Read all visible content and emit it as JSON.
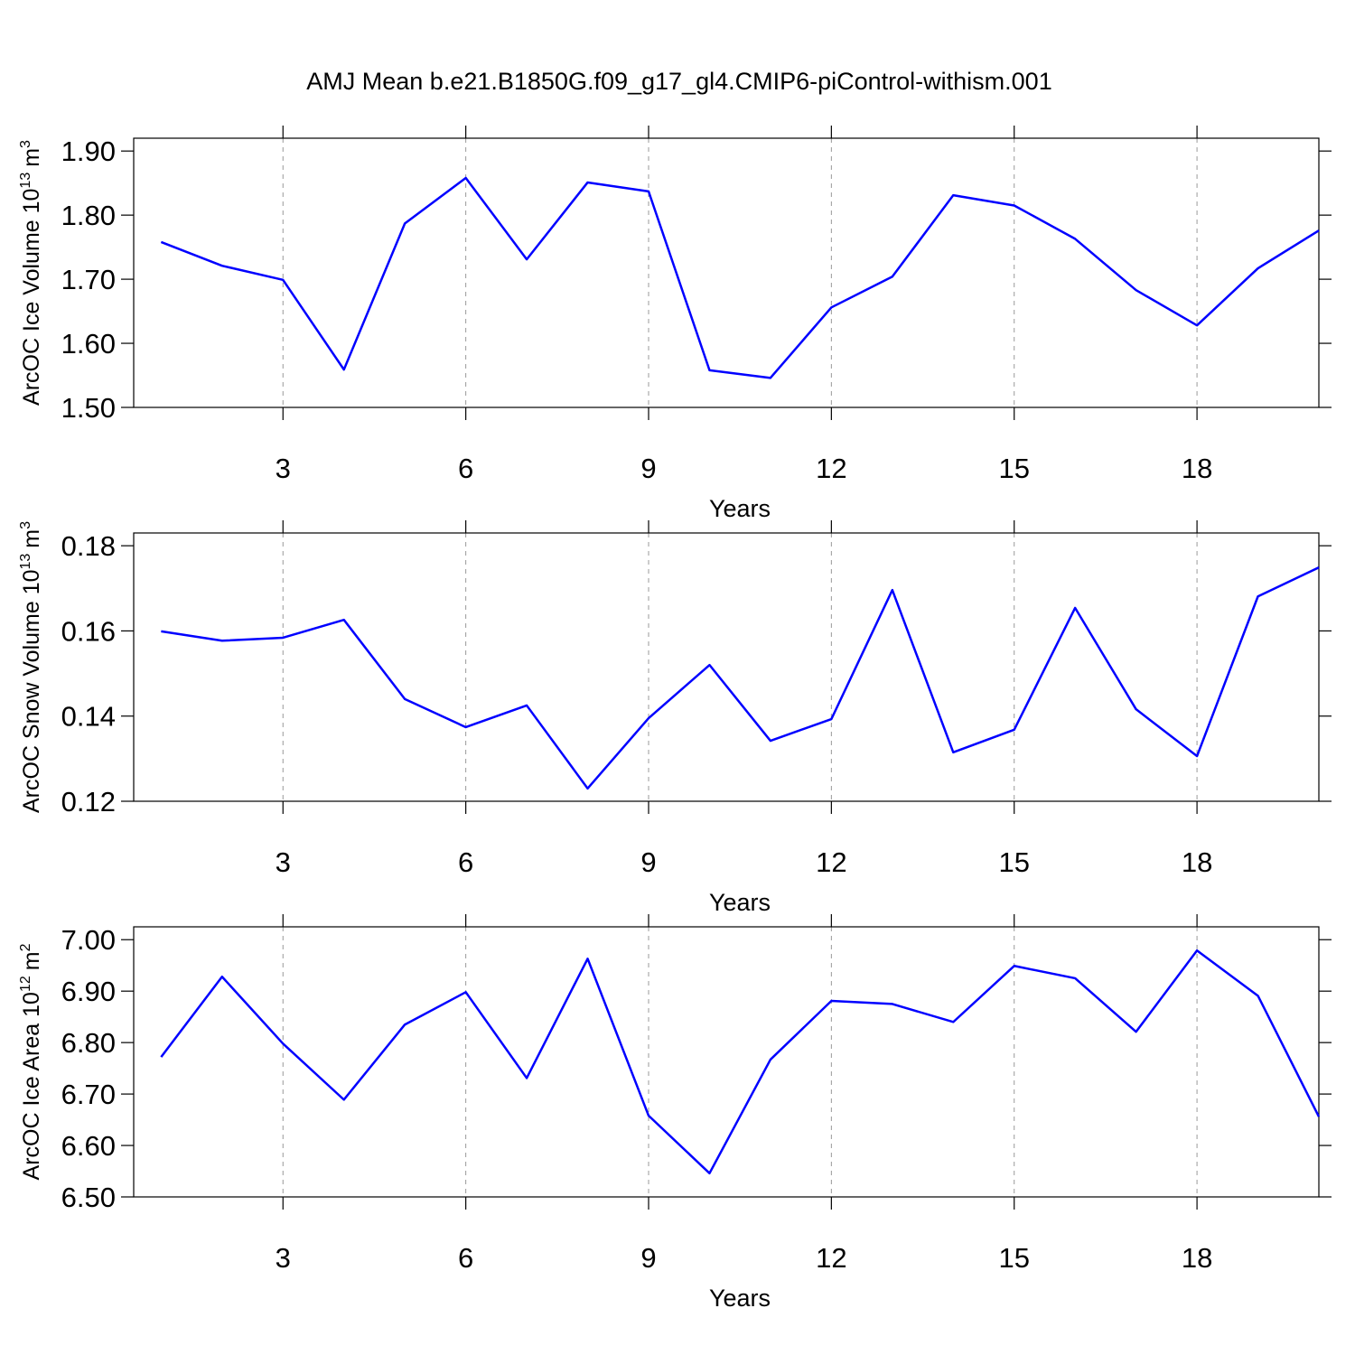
{
  "title": "AMJ Mean b.e21.B1850G.f09_g17_gl4.CMIP6-piControl-withism.001",
  "chart_data": [
    {
      "type": "line",
      "xlabel": "Years",
      "ylabel": {
        "text": "ArcOC Ice Volume 10",
        "exponent": "13",
        "unit": "m",
        "unit_exponent": "3"
      },
      "x": [
        1,
        2,
        3,
        4,
        5,
        6,
        7,
        8,
        9,
        10,
        11,
        12,
        13,
        14,
        15,
        16,
        17,
        18,
        19,
        20
      ],
      "values": [
        1.758,
        1.721,
        1.699,
        1.559,
        1.787,
        1.858,
        1.731,
        1.851,
        1.837,
        1.558,
        1.546,
        1.656,
        1.704,
        1.831,
        1.815,
        1.763,
        1.683,
        1.628,
        1.717,
        1.776
      ],
      "color": "#0000ff",
      "xlim": [
        0.55,
        20
      ],
      "xticks": [
        3,
        6,
        9,
        12,
        15,
        18
      ],
      "grid": true,
      "ylim": [
        1.5,
        1.92
      ],
      "yticks": [
        {
          "value": 1.5,
          "label": "1.50"
        },
        {
          "value": 1.6,
          "label": "1.60"
        },
        {
          "value": 1.7,
          "label": "1.70"
        },
        {
          "value": 1.8,
          "label": "1.80"
        },
        {
          "value": 1.9,
          "label": "1.90"
        }
      ]
    },
    {
      "type": "line",
      "xlabel": "Years",
      "ylabel": {
        "text": "ArcOC Snow Volume 10",
        "exponent": "13",
        "unit": "m",
        "unit_exponent": "3"
      },
      "x": [
        1,
        2,
        3,
        4,
        5,
        6,
        7,
        8,
        9,
        10,
        11,
        12,
        13,
        14,
        15,
        16,
        17,
        18,
        19,
        20
      ],
      "values": [
        0.1599,
        0.1577,
        0.1584,
        0.1626,
        0.144,
        0.1374,
        0.1425,
        0.123,
        0.1395,
        0.152,
        0.1342,
        0.1393,
        0.1696,
        0.1315,
        0.1368,
        0.1654,
        0.1416,
        0.1306,
        0.1681,
        0.1749
      ],
      "color": "#0000ff",
      "xlim": [
        0.55,
        20
      ],
      "xticks": [
        3,
        6,
        9,
        12,
        15,
        18
      ],
      "grid": true,
      "ylim": [
        0.12,
        0.183
      ],
      "yticks": [
        {
          "value": 0.12,
          "label": "0.12"
        },
        {
          "value": 0.14,
          "label": "0.14"
        },
        {
          "value": 0.16,
          "label": "0.16"
        },
        {
          "value": 0.18,
          "label": "0.18"
        }
      ]
    },
    {
      "type": "line",
      "xlabel": "Years",
      "ylabel": {
        "text": "ArcOC Ice Area 10",
        "exponent": "12",
        "unit": "m",
        "unit_exponent": "2"
      },
      "x": [
        1,
        2,
        3,
        4,
        5,
        6,
        7,
        8,
        9,
        10,
        11,
        12,
        13,
        14,
        15,
        16,
        17,
        18,
        19,
        20
      ],
      "values": [
        6.772,
        6.928,
        6.798,
        6.689,
        6.835,
        6.898,
        6.731,
        6.963,
        6.658,
        6.546,
        6.767,
        6.881,
        6.875,
        6.84,
        6.949,
        6.925,
        6.821,
        6.979,
        6.891,
        6.656
      ],
      "color": "#0000ff",
      "xlim": [
        0.55,
        20
      ],
      "xticks": [
        3,
        6,
        9,
        12,
        15,
        18
      ],
      "grid": true,
      "ylim": [
        6.5,
        7.025
      ],
      "yticks": [
        {
          "value": 6.5,
          "label": "6.50"
        },
        {
          "value": 6.6,
          "label": "6.60"
        },
        {
          "value": 6.7,
          "label": "6.70"
        },
        {
          "value": 6.8,
          "label": "6.80"
        },
        {
          "value": 6.9,
          "label": "6.90"
        },
        {
          "value": 7.0,
          "label": "7.00"
        }
      ]
    }
  ]
}
